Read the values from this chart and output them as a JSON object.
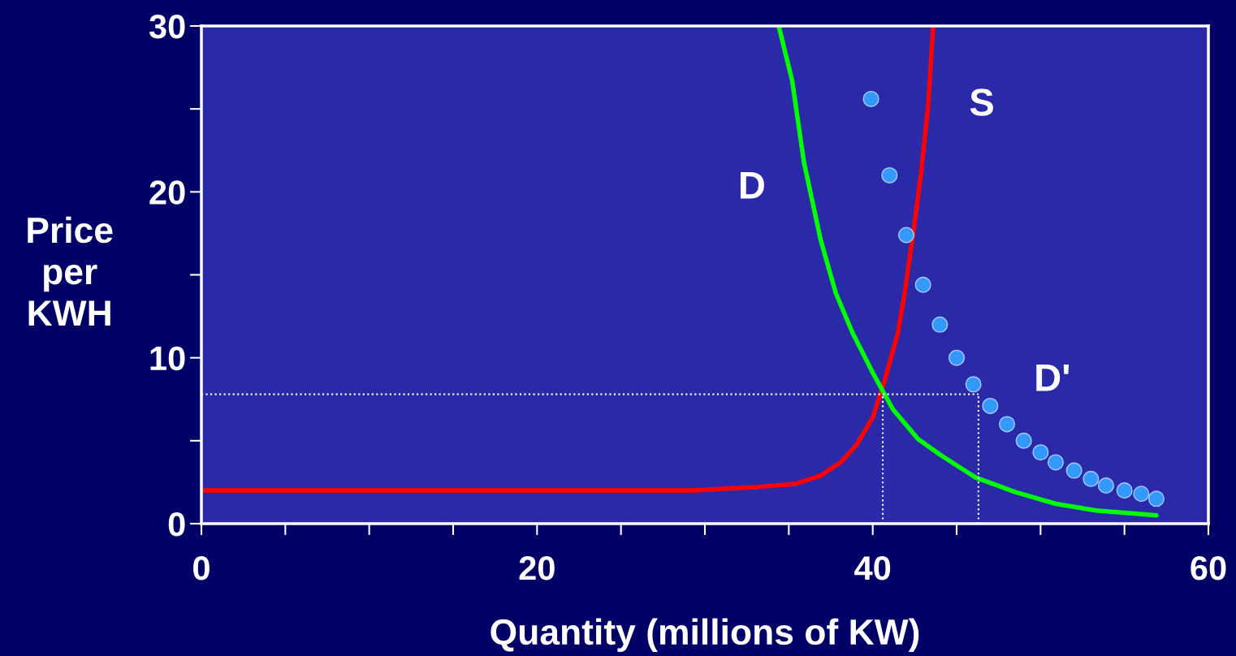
{
  "chart_data": {
    "type": "line",
    "xlabel": "Quantity (millions of KW)",
    "ylabel": "Price\nper\nKWH",
    "xlim": [
      0,
      60
    ],
    "ylim": [
      0,
      30
    ],
    "xticks": [
      0,
      {
        "value": 5,
        "label": null
      },
      {
        "value": 10,
        "label": null
      },
      {
        "value": 15,
        "label": null
      },
      20,
      {
        "value": 25,
        "label": null
      },
      {
        "value": 30,
        "label": null
      },
      {
        "value": 35,
        "label": null
      },
      40,
      {
        "value": 45,
        "label": null
      },
      {
        "value": 50,
        "label": null
      },
      {
        "value": 55,
        "label": null
      },
      60
    ],
    "yticks": [
      0,
      {
        "value": 5,
        "label": null
      },
      10,
      {
        "value": 15,
        "label": null
      },
      20,
      {
        "value": 25,
        "label": null
      },
      30
    ],
    "grid": false,
    "legend": false,
    "series": [
      {
        "name": "S",
        "color": "#ff0000",
        "line_style": "solid",
        "x": [
          0,
          29.1,
          33.0,
          35.4,
          36.9,
          38.1,
          39.0,
          40.0,
          40.7,
          41.5,
          41.9,
          42.4,
          42.9,
          43.3,
          43.6
        ],
        "values": [
          2.0,
          2.0,
          2.2,
          2.4,
          2.9,
          3.7,
          4.7,
          6.4,
          8.6,
          11.5,
          13.9,
          17.4,
          21.3,
          25.2,
          30
        ]
      },
      {
        "name": "D",
        "color": "#00ff00",
        "line_style": "solid",
        "x": [
          34.4,
          35.2,
          35.9,
          36.9,
          37.8,
          38.8,
          40.0,
          41.2,
          42.7,
          44.1,
          46.1,
          48.5,
          50.9,
          53.3,
          56.9
        ],
        "values": [
          30,
          26.7,
          21.8,
          17.1,
          13.9,
          11.5,
          9.1,
          6.9,
          5.1,
          4.1,
          2.8,
          1.9,
          1.2,
          0.8,
          0.5
        ]
      },
      {
        "name": "D'",
        "type": "scatter",
        "color": "#3399ff",
        "marker": "circle",
        "x": [
          39.9,
          41.0,
          42.0,
          43.0,
          44.0,
          45.0,
          46.0,
          47.0,
          48.0,
          49.0,
          50.0,
          50.9,
          52.0,
          53.0,
          53.9,
          55.0,
          56.0,
          56.9
        ],
        "values": [
          25.6,
          21.0,
          17.4,
          14.4,
          12.0,
          10.0,
          8.4,
          7.1,
          6.0,
          5.0,
          4.3,
          3.7,
          3.2,
          2.7,
          2.3,
          2.0,
          1.8,
          1.5
        ]
      },
      {
        "type": "line",
        "color": "#ffffff",
        "line_style": "dotted",
        "x": [
          0,
          46.3
        ],
        "values": [
          7.8,
          7.8
        ]
      },
      {
        "type": "line",
        "color": "#ffffff",
        "line_style": "dotted",
        "x": [
          40.6,
          40.6
        ],
        "values": [
          0,
          7.8
        ]
      },
      {
        "type": "line",
        "color": "#ffffff",
        "line_style": "dotted",
        "x": [
          46.3,
          46.3
        ],
        "values": [
          0,
          7.8
        ]
      }
    ]
  }
}
